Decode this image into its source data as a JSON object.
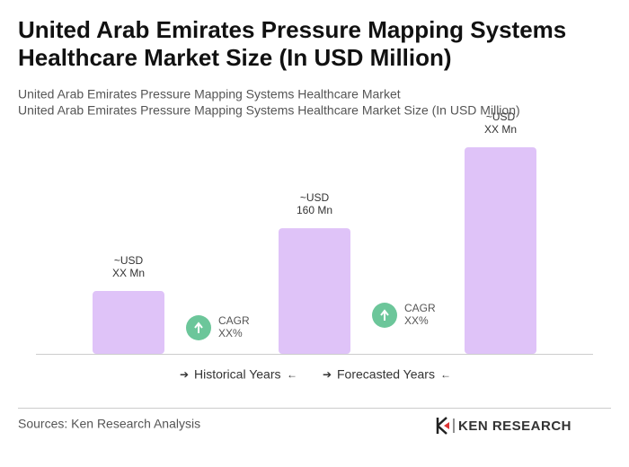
{
  "chart_data": {
    "type": "bar",
    "title": "United Arab Emirates Pressure Mapping Systems Healthcare Market Size (In USD Million)",
    "subtitle": "United Arab Emirates Pressure Mapping Systems Healthcare Market",
    "subtitle2": "United Arab Emirates Pressure Mapping Systems Healthcare Market Size (In USD Million)",
    "categories": [
      null,
      null,
      null
    ],
    "values": [
      80,
      160,
      263
    ],
    "value_labels": [
      "~USD XX Mn",
      "~USD 160 Mn",
      "~USD XX Mn"
    ],
    "color": "#dfc3f8",
    "cagr": [
      {
        "label": "CAGR",
        "value": "XX%"
      },
      {
        "label": "CAGR",
        "value": "XX%"
      }
    ],
    "cagr_color": "#6cc69a",
    "legend": [
      "Historical Years",
      "Forecasted Years"
    ],
    "source": "Sources: Ken Research Analysis",
    "brand": "KEN RESEARCH"
  }
}
